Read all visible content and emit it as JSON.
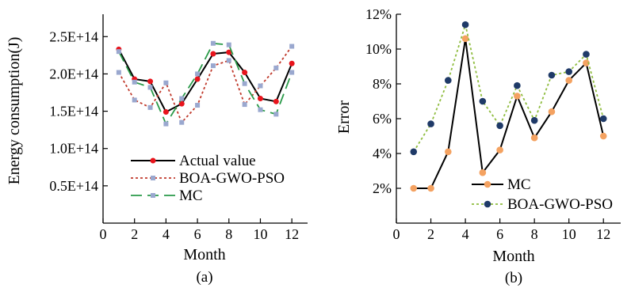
{
  "chart_data": [
    {
      "type": "line",
      "caption": "(a)",
      "xlabel": "Month",
      "ylabel": "Energy consumption(J)",
      "xlim": [
        0,
        13
      ],
      "ylim": [
        0,
        280000000000000.0
      ],
      "xticks": [
        0,
        2,
        4,
        6,
        8,
        10,
        12
      ],
      "xtick_labels": [
        "0",
        "2",
        "4",
        "6",
        "8",
        "10",
        "12"
      ],
      "yticks": [
        50000000000000.0,
        100000000000000.0,
        150000000000000.0,
        200000000000000.0,
        250000000000000.0
      ],
      "ytick_labels": [
        "0.5E+14",
        "1.0E+14",
        "1.5E+14",
        "2.0E+14",
        "2.5E+14"
      ],
      "legend_position": "bottom-right",
      "grid": false,
      "x": [
        1,
        2,
        3,
        4,
        5,
        6,
        7,
        8,
        9,
        10,
        11,
        12
      ],
      "series": [
        {
          "name": "Actual value",
          "color": "#000000",
          "marker_color": "#e8141c",
          "style": "solid",
          "marker": "circle",
          "values": [
            233000000000000.0,
            193000000000000.0,
            190000000000000.0,
            149000000000000.0,
            160000000000000.0,
            193000000000000.0,
            227000000000000.0,
            229000000000000.0,
            202000000000000.0,
            167000000000000.0,
            163000000000000.0,
            214000000000000.0
          ]
        },
        {
          "name": "BOA-GWO-PSO",
          "color": "#c0392b",
          "marker_color": "#9aa8cf",
          "style": "dotted",
          "marker": "square",
          "values": [
            202000000000000.0,
            165000000000000.0,
            155000000000000.0,
            188000000000000.0,
            135000000000000.0,
            158000000000000.0,
            211000000000000.0,
            218000000000000.0,
            159000000000000.0,
            184000000000000.0,
            208000000000000.0,
            237000000000000.0
          ]
        },
        {
          "name": "MC",
          "color": "#2a9a49",
          "marker_color": "#9aa8cf",
          "style": "dashed",
          "marker": "square",
          "values": [
            230000000000000.0,
            189000000000000.0,
            182000000000000.0,
            133000000000000.0,
            167000000000000.0,
            200000000000000.0,
            241000000000000.0,
            239000000000000.0,
            187000000000000.0,
            152000000000000.0,
            146000000000000.0,
            202000000000000.0
          ]
        }
      ]
    },
    {
      "type": "line",
      "caption": "(b)",
      "xlabel": "Month",
      "ylabel": "Error",
      "xlim": [
        0,
        13
      ],
      "ylim": [
        0,
        0.12
      ],
      "xticks": [
        0,
        2,
        4,
        6,
        8,
        10,
        12
      ],
      "xtick_labels": [
        "0",
        "2",
        "4",
        "6",
        "8",
        "10",
        "12"
      ],
      "yticks": [
        0.02,
        0.04,
        0.06,
        0.08,
        0.1,
        0.12
      ],
      "ytick_labels": [
        "2%",
        "4%",
        "6%",
        "8%",
        "10%",
        "12%"
      ],
      "legend_position": "bottom-right",
      "grid": false,
      "series": [
        {
          "name": "MC",
          "color": "#000000",
          "marker_color": "#f4a261",
          "style": "solid",
          "marker": "circle",
          "x": [
            1,
            2,
            3,
            4,
            5,
            6,
            7,
            8,
            9,
            10,
            11,
            12
          ],
          "values": [
            0.02,
            0.02,
            0.041,
            0.106,
            0.029,
            0.042,
            0.073,
            0.049,
            0.064,
            0.082,
            0.092,
            0.05
          ]
        },
        {
          "name": "BOA-GWO-PSO",
          "color": "#8fbc3f",
          "marker_color": "#1f3a68",
          "style": "dotted",
          "marker": "circle",
          "x": [
            1,
            2,
            3,
            4,
            5,
            6,
            7,
            8,
            9,
            10,
            11,
            12
          ],
          "values": [
            0.041,
            0.057,
            0.082,
            0.114,
            0.07,
            0.056,
            0.079,
            0.059,
            0.085,
            0.087,
            0.097,
            0.06
          ]
        }
      ]
    }
  ]
}
